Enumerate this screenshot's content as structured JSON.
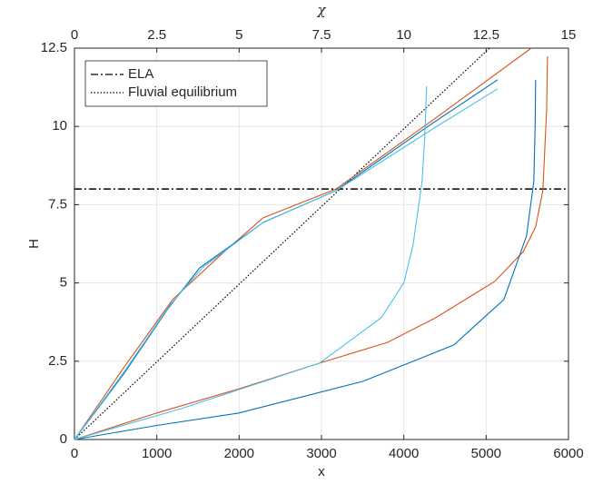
{
  "chart_data": {
    "type": "line",
    "xlabel": "x",
    "ylabel": "H",
    "x2label": "χ",
    "xlim": [
      0,
      6000
    ],
    "xticks": [
      0,
      1000,
      2000,
      3000,
      4000,
      5000,
      6000
    ],
    "x2lim": [
      0,
      15
    ],
    "x2ticks": [
      0,
      2.5,
      5,
      7.5,
      10,
      12.5,
      15
    ],
    "ylim": [
      0,
      12.5
    ],
    "yticks": [
      0,
      2.5,
      5,
      7.5,
      10,
      12.5
    ],
    "grid": true,
    "legend": "upper left",
    "hlines": [
      {
        "name": "ELA",
        "y": 8,
        "color": "#000000",
        "style": "dashdot"
      }
    ],
    "series": [
      {
        "name": "Fluvial equilibrium",
        "color": "#000000",
        "style": "dotted",
        "xaxis": "x2",
        "x": [
          0,
          12.6
        ],
        "values": [
          0,
          12.5
        ]
      },
      {
        "color": "#d95319",
        "xaxis": "x2",
        "x": [
          0,
          1.5,
          2.98,
          4.5,
          5.73,
          7.94,
          10.97,
          13.87
        ],
        "values": [
          0,
          2.3,
          4.47,
          5.95,
          7.08,
          8.0,
          10.27,
          12.5
        ]
      },
      {
        "color": "#0072bd",
        "xaxis": "x2",
        "x": [
          0,
          1.5,
          2.84,
          3.8,
          5.73,
          7.94,
          10.7,
          12.85
        ],
        "values": [
          0,
          2.1,
          4.18,
          5.48,
          6.93,
          7.95,
          9.98,
          11.49
        ]
      },
      {
        "color": "#4dbeee",
        "xaxis": "x2",
        "x": [
          0,
          1.5,
          2.9,
          3.9,
          5.75,
          7.95,
          10.97,
          12.85
        ],
        "values": [
          0,
          2.15,
          4.3,
          5.5,
          6.95,
          7.95,
          9.98,
          11.2
        ]
      },
      {
        "color": "#d95319",
        "xaxis": "x",
        "x": [
          0,
          992,
          2000,
          2977,
          3800,
          4388,
          5105,
          5450,
          5601,
          5689,
          5735,
          5745
        ],
        "values": [
          0,
          0.84,
          1.62,
          2.44,
          3.1,
          3.89,
          5.05,
          6.0,
          6.79,
          7.95,
          10.56,
          12.24
        ]
      },
      {
        "color": "#0072bd",
        "xaxis": "x",
        "x": [
          0,
          1000,
          1985,
          3506,
          4608,
          5215,
          5490,
          5579,
          5595,
          5601
        ],
        "values": [
          0,
          0.45,
          0.84,
          1.86,
          3.02,
          4.47,
          6.5,
          8.24,
          10.0,
          11.49
        ]
      },
      {
        "color": "#4dbeee",
        "xaxis": "x",
        "x": [
          0,
          1300,
          2977,
          3726,
          4000,
          4112,
          4222,
          4255,
          4277
        ],
        "values": [
          0,
          0.99,
          2.44,
          3.89,
          5.0,
          6.21,
          8.24,
          9.69,
          11.28
        ]
      }
    ]
  }
}
